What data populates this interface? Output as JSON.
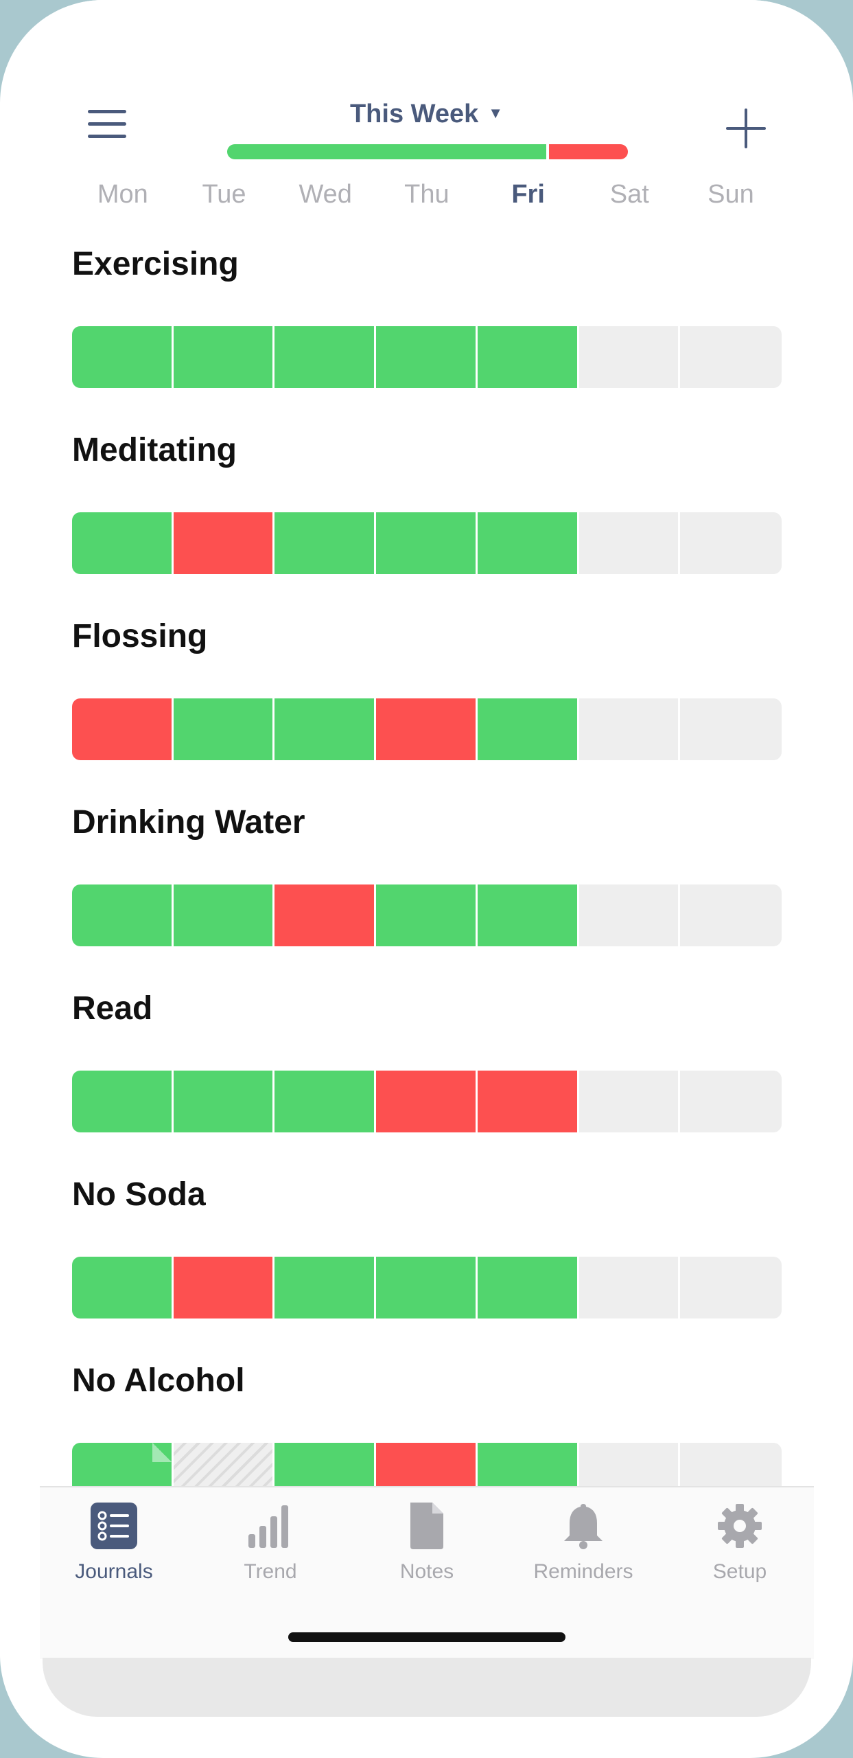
{
  "header": {
    "week_label": "This Week",
    "week_progress": {
      "good_fraction": 0.8,
      "bad_fraction": 0.2
    },
    "days": [
      "Mon",
      "Tue",
      "Wed",
      "Thu",
      "Fri",
      "Sat",
      "Sun"
    ],
    "active_day": "Fri"
  },
  "habits": [
    {
      "name": "Exercising",
      "days": [
        "done",
        "done",
        "done",
        "done",
        "done",
        "empty",
        "empty"
      ]
    },
    {
      "name": "Meditating",
      "days": [
        "done",
        "missed",
        "done",
        "done",
        "done",
        "empty",
        "empty"
      ]
    },
    {
      "name": "Flossing",
      "days": [
        "missed",
        "done",
        "done",
        "missed",
        "done",
        "empty",
        "empty"
      ]
    },
    {
      "name": "Drinking Water",
      "days": [
        "done",
        "done",
        "missed",
        "done",
        "done",
        "empty",
        "empty"
      ]
    },
    {
      "name": "Read",
      "days": [
        "done",
        "done",
        "done",
        "missed",
        "missed",
        "empty",
        "empty"
      ]
    },
    {
      "name": "No Soda",
      "days": [
        "done",
        "missed",
        "done",
        "done",
        "done",
        "empty",
        "empty"
      ]
    },
    {
      "name": "No Alcohol",
      "days": [
        "done-note",
        "skipped",
        "done",
        "missed",
        "done",
        "empty",
        "empty"
      ]
    }
  ],
  "tabs": [
    {
      "label": "Journals",
      "icon": "list-icon",
      "active": true
    },
    {
      "label": "Trend",
      "icon": "bar-chart-icon",
      "active": false
    },
    {
      "label": "Notes",
      "icon": "document-icon",
      "active": false
    },
    {
      "label": "Reminders",
      "icon": "bell-icon",
      "active": false
    },
    {
      "label": "Setup",
      "icon": "gear-icon",
      "active": false
    }
  ],
  "colors": {
    "accent": "#4a5a7c",
    "done": "#52d56e",
    "missed": "#fd5050",
    "empty": "#eeeeee",
    "inactive": "#a8a8ad"
  }
}
